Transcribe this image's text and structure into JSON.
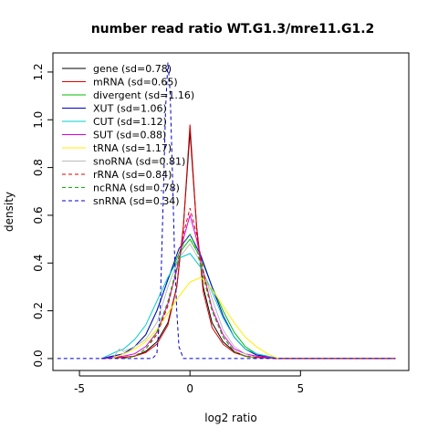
{
  "chart_data": {
    "type": "line",
    "title": "number read ratio WT.G1.3/mre11.G1.2",
    "xlabel": "log2 ratio",
    "ylabel": "density",
    "xlim": [
      -6.2,
      9.9
    ],
    "ylim": [
      -0.05,
      1.28
    ],
    "xticks": [
      -5,
      0,
      5
    ],
    "yticks": [
      0.0,
      0.2,
      0.4,
      0.6,
      0.8,
      1.0,
      1.2
    ],
    "xtick_labels": [
      "-5",
      "0",
      "5"
    ],
    "ytick_labels": [
      "0.0",
      "0.2",
      "0.4",
      "0.6",
      "0.8",
      "1.0",
      "1.2"
    ],
    "legend_position": "top-left",
    "series": [
      {
        "name": "gene (sd=0.78)",
        "color": "#000000",
        "dash": "solid",
        "x": [
          -4,
          -3,
          -2.5,
          -2,
          -1.5,
          -1,
          -0.6,
          -0.3,
          0,
          0.3,
          0.6,
          1,
          1.5,
          2,
          2.5,
          3,
          4,
          9.3
        ],
        "y": [
          0,
          0.005,
          0.01,
          0.03,
          0.07,
          0.15,
          0.3,
          0.55,
          0.95,
          0.55,
          0.3,
          0.15,
          0.07,
          0.03,
          0.01,
          0.005,
          0,
          0
        ]
      },
      {
        "name": "mRNA (sd=0.65)",
        "color": "#dd0000",
        "dash": "solid",
        "x": [
          -4,
          -3,
          -2.5,
          -2,
          -1.5,
          -1,
          -0.6,
          -0.3,
          0,
          0.3,
          0.6,
          1,
          1.5,
          2,
          2.5,
          3,
          4,
          9.3
        ],
        "y": [
          0,
          0.005,
          0.01,
          0.025,
          0.06,
          0.14,
          0.3,
          0.55,
          0.98,
          0.55,
          0.28,
          0.13,
          0.06,
          0.025,
          0.01,
          0.005,
          0,
          0
        ]
      },
      {
        "name": "divergent (sd=1.16)",
        "color": "#00bb00",
        "dash": "solid",
        "x": [
          -4,
          -3,
          -2.5,
          -2,
          -1.5,
          -1,
          -0.5,
          0,
          0.5,
          1,
          1.5,
          2,
          2.5,
          3,
          4
        ],
        "y": [
          0,
          0.02,
          0.05,
          0.1,
          0.2,
          0.33,
          0.44,
          0.5,
          0.42,
          0.3,
          0.2,
          0.11,
          0.05,
          0.02,
          0
        ]
      },
      {
        "name": "XUT (sd=1.06)",
        "color": "#0000cc",
        "dash": "solid",
        "x": [
          -4,
          -3,
          -2.5,
          -2,
          -1.5,
          -1,
          -0.5,
          0,
          0.5,
          1,
          1.5,
          2,
          2.5,
          3,
          4
        ],
        "y": [
          0,
          0.02,
          0.05,
          0.1,
          0.2,
          0.33,
          0.46,
          0.52,
          0.43,
          0.3,
          0.18,
          0.09,
          0.04,
          0.015,
          0
        ]
      },
      {
        "name": "CUT (sd=1.12)",
        "color": "#00cccc",
        "dash": "solid",
        "x": [
          -4,
          -3.3,
          -3,
          -2.5,
          -2,
          -1.5,
          -1,
          -0.5,
          0,
          0.5,
          1,
          1.5,
          2,
          2.5,
          3,
          3.5,
          4
        ],
        "y": [
          0,
          0.03,
          0.04,
          0.08,
          0.14,
          0.24,
          0.34,
          0.42,
          0.44,
          0.38,
          0.28,
          0.17,
          0.09,
          0.04,
          0.02,
          0.01,
          0
        ]
      },
      {
        "name": "SUT (sd=0.88)",
        "color": "#dd00dd",
        "dash": "solid",
        "x": [
          -4,
          -3,
          -2.5,
          -2,
          -1.5,
          -1,
          -0.6,
          -0.3,
          0,
          0.3,
          0.6,
          1,
          1.5,
          2,
          2.5,
          3,
          4
        ],
        "y": [
          0,
          0.01,
          0.02,
          0.05,
          0.11,
          0.23,
          0.37,
          0.5,
          0.6,
          0.5,
          0.36,
          0.21,
          0.1,
          0.04,
          0.02,
          0.01,
          0
        ]
      },
      {
        "name": "tRNA (sd=1.17)",
        "color": "#ffee00",
        "dash": "solid",
        "x": [
          -3.5,
          -3,
          -2.5,
          -2,
          -1.5,
          -1,
          -0.5,
          0,
          0.5,
          1,
          1.5,
          2,
          2.5,
          3,
          3.5,
          4
        ],
        "y": [
          0,
          0.02,
          0.04,
          0.07,
          0.12,
          0.19,
          0.26,
          0.32,
          0.34,
          0.29,
          0.22,
          0.15,
          0.09,
          0.05,
          0.02,
          0
        ]
      },
      {
        "name": "snoRNA (sd=0.81)",
        "color": "#bbbbbb",
        "dash": "solid",
        "x": [
          -3.5,
          -3.2,
          -3,
          -2.5,
          -2,
          -1.5,
          -1,
          -0.5,
          0,
          0.5,
          1,
          1.5,
          2,
          2.5,
          3
        ],
        "y": [
          0,
          0.04,
          0.03,
          0.05,
          0.08,
          0.15,
          0.3,
          0.42,
          0.48,
          0.4,
          0.25,
          0.12,
          0.05,
          0.02,
          0
        ]
      },
      {
        "name": "rRNA (sd=0.84)",
        "color": "#dd0000",
        "dash": "dashed",
        "x": [
          -3,
          -2.5,
          -2,
          -1.5,
          -1,
          -0.6,
          -0.3,
          0,
          0.3,
          0.6,
          1,
          1.5,
          2,
          2.5,
          3
        ],
        "y": [
          0,
          0.01,
          0.04,
          0.1,
          0.22,
          0.38,
          0.52,
          0.63,
          0.52,
          0.37,
          0.2,
          0.09,
          0.03,
          0.01,
          0
        ]
      },
      {
        "name": "ncRNA (sd=0.78)",
        "color": "#00bb00",
        "dash": "dashed",
        "x": [
          -3,
          -2.5,
          -2,
          -1.5,
          -1,
          -0.6,
          -0.3,
          0,
          0.3,
          0.6,
          1,
          1.5,
          2,
          2.5,
          3
        ],
        "y": [
          0,
          0.01,
          0.04,
          0.11,
          0.24,
          0.38,
          0.48,
          0.52,
          0.46,
          0.34,
          0.2,
          0.09,
          0.03,
          0.01,
          0
        ]
      },
      {
        "name": "snRNA (sd=0.34)",
        "color": "#0000cc",
        "dash": "dashed",
        "x": [
          -6,
          -1.7,
          -1.5,
          -1.35,
          -1.2,
          -1.1,
          -1.0,
          -0.9,
          -0.8,
          -0.7,
          -0.6,
          -0.5,
          -0.3,
          0,
          9.3
        ],
        "y": [
          0,
          0,
          0.02,
          0.2,
          0.7,
          1.05,
          1.24,
          1.12,
          0.8,
          0.45,
          0.2,
          0.05,
          0,
          0,
          0
        ]
      }
    ]
  }
}
